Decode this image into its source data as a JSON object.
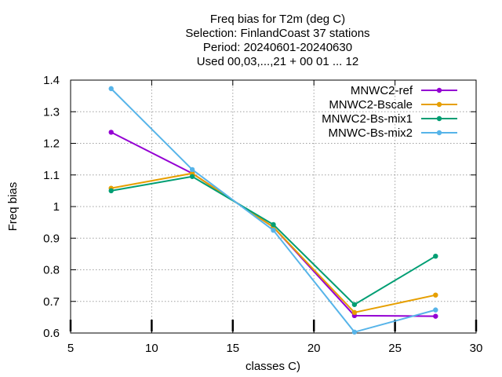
{
  "chart_data": {
    "type": "line",
    "title": [
      "Freq bias  for T2m (deg C)",
      "Selection: FinlandCoast      37 stations",
      "Period: 20240601-20240630",
      "Used 00,03,...,21 + 00 01 ... 12"
    ],
    "xlabel": "classes C)",
    "ylabel": "Freq bias",
    "xlim": [
      5,
      30
    ],
    "ylim": [
      0.6,
      1.4
    ],
    "xticks": [
      5,
      10,
      15,
      20,
      25,
      30
    ],
    "yticks": [
      0.6,
      0.7,
      0.8,
      0.9,
      1.0,
      1.1,
      1.2,
      1.3,
      1.4
    ],
    "xtick_labels": [
      "5",
      "10",
      "15",
      "20",
      "25",
      "30"
    ],
    "ytick_labels": [
      "0.6",
      "0.7",
      "0.8",
      "0.9",
      "1",
      "1.1",
      "1.2",
      "1.3",
      "1.4"
    ],
    "grid": true,
    "legend_position": "top-right",
    "x": [
      7.5,
      12.5,
      17.5,
      22.5,
      27.5
    ],
    "series": [
      {
        "name": "MNWC2-ref",
        "color": "#9400d3",
        "values": [
          1.235,
          1.105,
          0.935,
          0.655,
          0.653
        ]
      },
      {
        "name": "MNWC2-Bscale",
        "color": "#e69f00",
        "values": [
          1.058,
          1.105,
          0.935,
          0.665,
          0.72
        ]
      },
      {
        "name": "MNWC2-Bs-mix1",
        "color": "#009e73",
        "values": [
          1.05,
          1.095,
          0.943,
          0.69,
          0.843
        ]
      },
      {
        "name": "MNWC-Bs-mix2",
        "color": "#56b4e9",
        "values": [
          1.373,
          1.117,
          0.925,
          0.603,
          0.673
        ]
      }
    ],
    "class_markers_x": [
      5,
      10,
      15,
      20,
      25,
      30
    ]
  }
}
